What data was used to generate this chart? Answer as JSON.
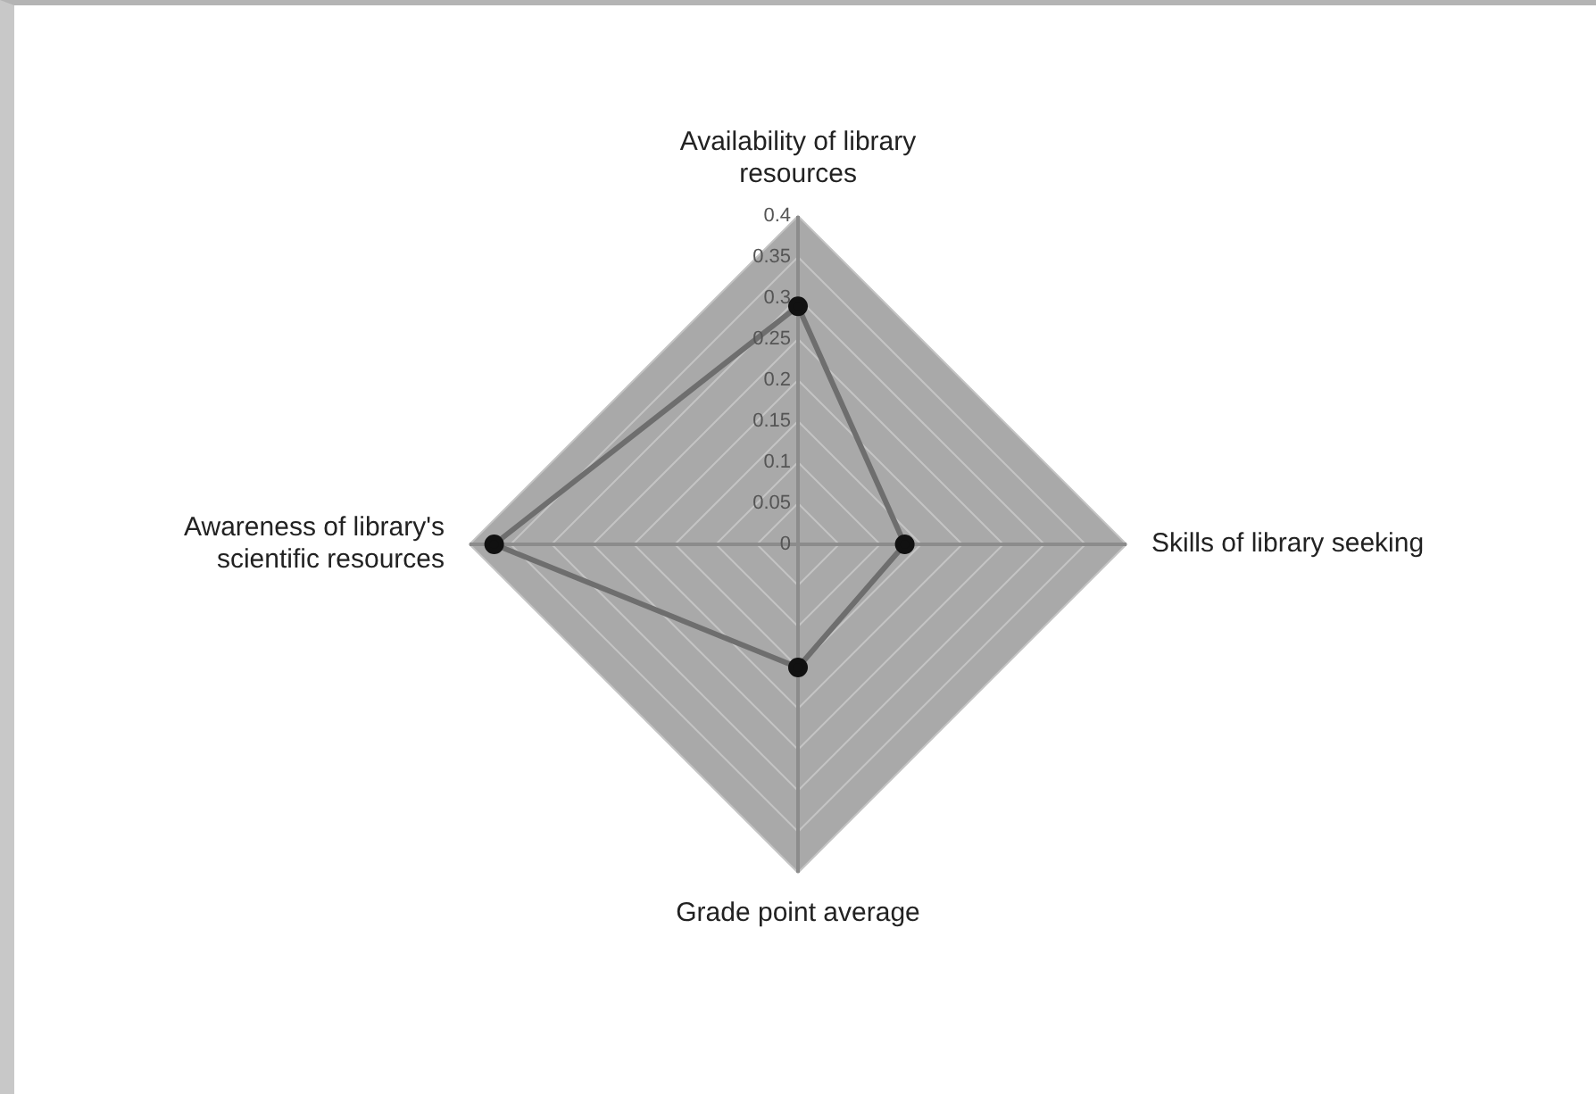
{
  "chart_data": {
    "type": "radar",
    "categories": [
      "Availability of library resources",
      "Skills of library seeking",
      "Grade point average",
      "Awareness of library's scientific resources"
    ],
    "series": [
      {
        "color": "#6e6e6e",
        "values": [
          0.29,
          0.13,
          0.15,
          0.37
        ]
      }
    ],
    "ylim": [
      0,
      0.4
    ],
    "yticks": [
      0,
      0.05,
      0.1,
      0.15,
      0.2,
      0.25,
      0.3,
      0.35,
      0.4
    ],
    "grid": true,
    "legend": false,
    "marker": "circle"
  }
}
